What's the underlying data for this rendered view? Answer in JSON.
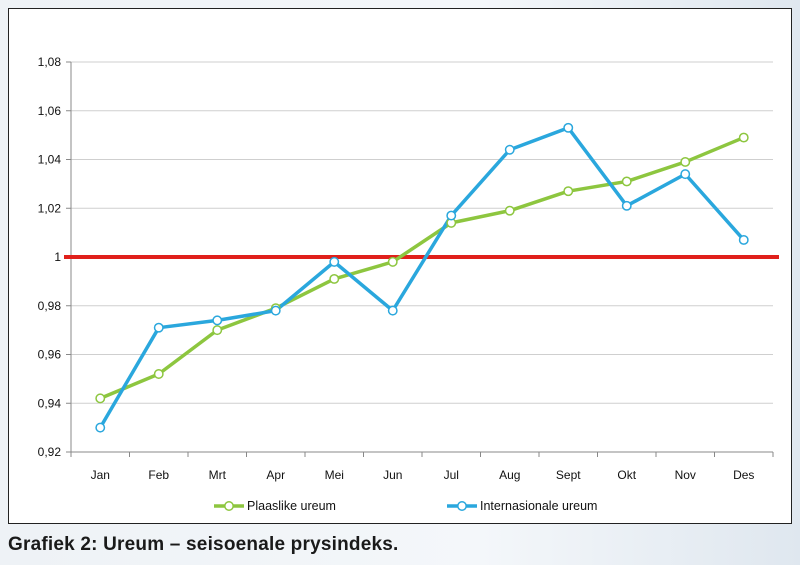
{
  "caption": "Grafiek 2: Ureum – seisoenale prysindeks.",
  "chart_data": {
    "type": "line",
    "categories": [
      "Jan",
      "Feb",
      "Mrt",
      "Apr",
      "Mei",
      "Jun",
      "Jul",
      "Aug",
      "Sept",
      "Okt",
      "Nov",
      "Des"
    ],
    "series": [
      {
        "name": "Plaaslike ureum",
        "color": "#8dc63f",
        "values": [
          0.942,
          0.952,
          0.97,
          0.979,
          0.991,
          0.998,
          1.014,
          1.019,
          1.027,
          1.031,
          1.039,
          1.049
        ]
      },
      {
        "name": "Internasionale ureum",
        "color": "#2aa7dd",
        "values": [
          0.93,
          0.971,
          0.974,
          0.978,
          0.998,
          0.978,
          1.017,
          1.044,
          1.053,
          1.021,
          1.034,
          1.007
        ]
      }
    ],
    "reference_line": {
      "value": 1.0,
      "color": "#e0201b"
    },
    "ylim": [
      0.92,
      1.08
    ],
    "yticks": [
      "0,92",
      "0,94",
      "0,96",
      "0,98",
      "1",
      "1,02",
      "1,04",
      "1,06",
      "1,08"
    ],
    "grid": true,
    "legend_position": "bottom"
  }
}
